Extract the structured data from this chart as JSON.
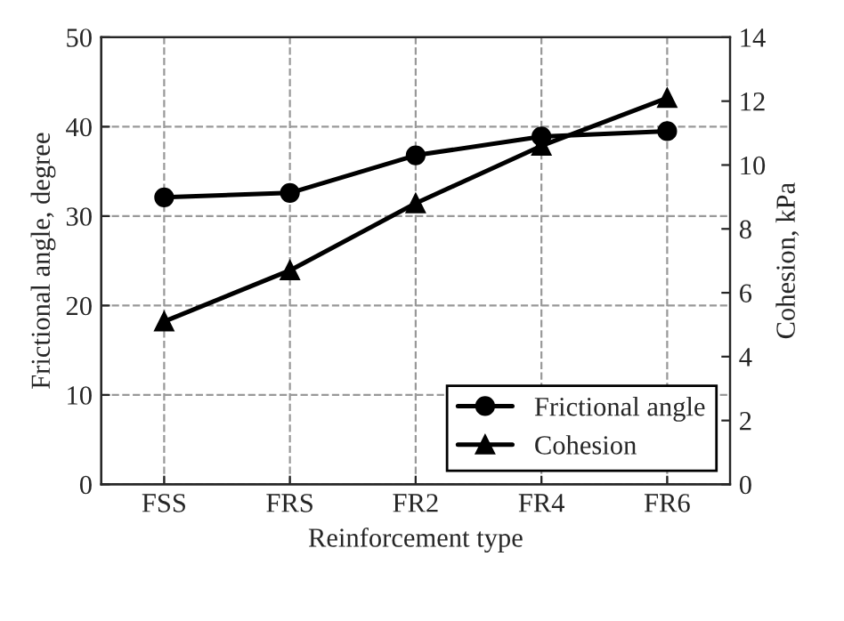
{
  "chart_data": {
    "type": "line",
    "xlabel": "Reinforcement type",
    "ylabel": "Frictional angle, degree",
    "y2label": "Cohesion, kPa",
    "categories": [
      "FSS",
      "FRS",
      "FR2",
      "FR4",
      "FR6"
    ],
    "series": [
      {
        "name": "Frictional angle",
        "color": "#000000",
        "marker": "circle",
        "values": [
          32.1,
          32.6,
          36.8,
          38.9,
          39.5
        ]
      },
      {
        "name": "Cohesion",
        "color": "#000000",
        "marker": "triangle",
        "axis": "y2",
        "values": [
          5.1,
          6.7,
          8.8,
          10.6,
          12.1
        ]
      }
    ],
    "ylim": [
      0,
      50
    ],
    "yticks": [
      0,
      10,
      20,
      30,
      40,
      50
    ],
    "y2lim": [
      0,
      14
    ],
    "y2ticks": [
      0,
      2,
      4,
      6,
      8,
      10,
      12,
      14
    ],
    "grid": true,
    "legend": "bottom right",
    "line_style": "solid"
  }
}
